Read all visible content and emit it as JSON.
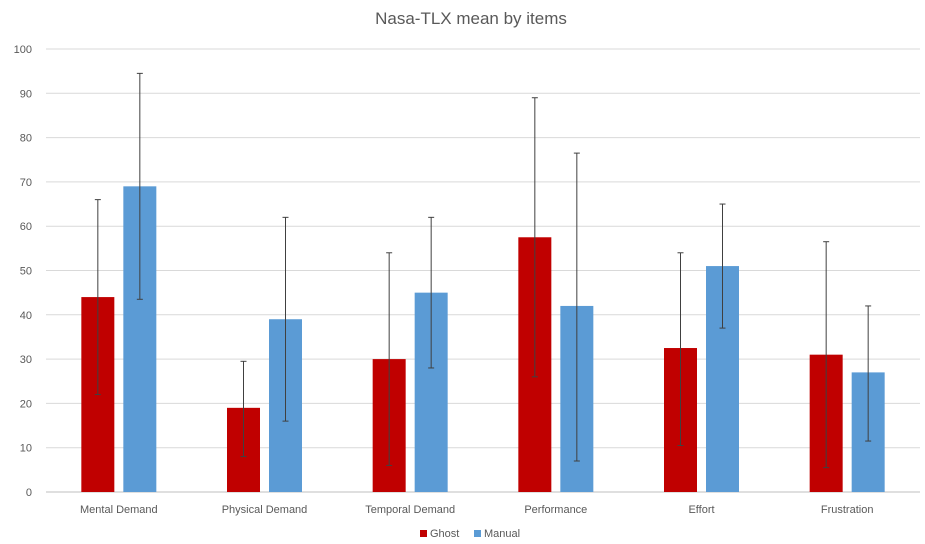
{
  "chart_data": {
    "type": "bar",
    "title": "Nasa-TLX mean by items",
    "xlabel": "",
    "ylabel": "",
    "ylim": [
      0,
      100
    ],
    "yticks": [
      0,
      10,
      20,
      30,
      40,
      50,
      60,
      70,
      80,
      90,
      100
    ],
    "grid": true,
    "legend_position": "bottom",
    "categories": [
      "Mental Demand",
      "Physical Demand",
      "Temporal Demand",
      "Performance",
      "Effort",
      "Frustration"
    ],
    "series": [
      {
        "name": "Ghost",
        "color": "#c00000",
        "values": [
          44,
          19,
          30,
          57.5,
          32.5,
          31
        ],
        "error_low": [
          22,
          8,
          6,
          26,
          10.5,
          5.5
        ],
        "error_high": [
          66,
          29.5,
          54,
          89,
          54,
          56.5
        ]
      },
      {
        "name": "Manual",
        "color": "#5b9bd5",
        "values": [
          69,
          39,
          45,
          42,
          51,
          27
        ],
        "error_low": [
          43.5,
          16,
          28,
          7,
          37,
          11.5
        ],
        "error_high": [
          94.5,
          62,
          62,
          76.5,
          65,
          42
        ]
      }
    ]
  }
}
